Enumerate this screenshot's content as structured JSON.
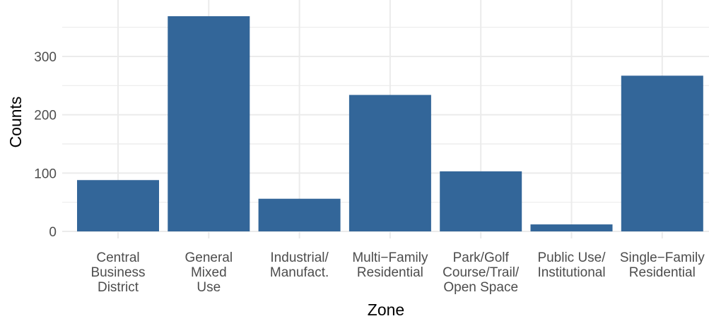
{
  "chart_data": {
    "type": "bar",
    "title": "",
    "xlabel": "Zone",
    "ylabel": "Counts",
    "categories": [
      [
        "Central",
        "Business",
        "District"
      ],
      [
        "General",
        "Mixed",
        "Use"
      ],
      [
        "Industrial/",
        "Manufact."
      ],
      [
        "Multi−Family",
        "Residential"
      ],
      [
        "Park/Golf",
        "Course/Trail/",
        "Open Space"
      ],
      [
        "Public Use/",
        "Institutional"
      ],
      [
        "Single−Family",
        "Residential"
      ]
    ],
    "values": [
      88,
      369,
      56,
      234,
      103,
      12,
      267
    ],
    "ylim": [
      0,
      380
    ],
    "yticks": [
      0,
      100,
      200,
      300
    ],
    "grid": true,
    "colors": {
      "bar": "#336699",
      "grid": "#ebebeb"
    }
  }
}
